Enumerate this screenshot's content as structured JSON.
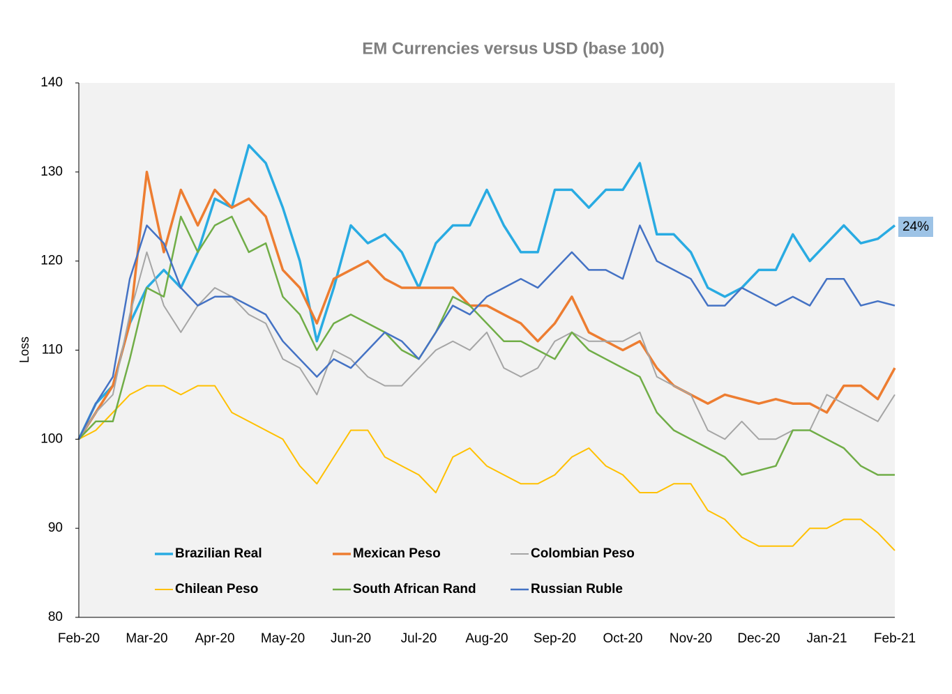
{
  "chart_data": {
    "type": "line",
    "title": "EM Currencies versus USD (base 100)",
    "y_label": "Loss",
    "categories": [
      "Feb-20",
      null,
      null,
      null,
      "Mar-20",
      null,
      null,
      null,
      "Apr-20",
      null,
      null,
      null,
      "May-20",
      null,
      null,
      null,
      "Jun-20",
      null,
      null,
      null,
      "Jul-20",
      null,
      null,
      null,
      "Aug-20",
      null,
      null,
      null,
      "Sep-20",
      null,
      null,
      null,
      "Oct-20",
      null,
      null,
      null,
      "Nov-20",
      null,
      null,
      null,
      "Dec-20",
      null,
      null,
      null,
      "Jan-21",
      null,
      null,
      null,
      "Feb-21"
    ],
    "ylim": [
      80,
      140
    ],
    "yticks": [
      80,
      90,
      100,
      110,
      120,
      130,
      140
    ],
    "grid": false,
    "annotation": "24%",
    "series": [
      {
        "name": "Brazilian Real",
        "color": "#29abe2",
        "line_width": 3.5,
        "values": [
          100,
          104,
          106,
          113,
          117,
          119,
          117,
          121,
          127,
          126,
          133,
          131,
          126,
          120,
          111,
          117,
          124,
          122,
          123,
          121,
          117,
          122,
          124,
          124,
          128,
          124,
          121,
          121,
          128,
          128,
          126,
          128,
          128,
          131,
          123,
          123,
          121,
          117,
          116,
          117,
          119,
          119,
          123,
          120,
          122,
          124,
          122,
          122.5,
          124
        ]
      },
      {
        "name": "Mexican Peso",
        "color": "#ed7d31",
        "line_width": 3.5,
        "values": [
          100,
          103,
          106,
          113,
          130,
          121,
          128,
          124,
          128,
          126,
          127,
          125,
          119,
          117,
          113,
          118,
          119,
          120,
          118,
          117,
          117,
          117,
          117,
          115,
          115,
          114,
          113,
          111,
          113,
          116,
          112,
          111,
          110,
          111,
          108,
          106,
          105,
          104,
          105,
          104.5,
          104,
          104.5,
          104,
          104,
          103,
          106,
          106,
          104.5,
          108
        ]
      },
      {
        "name": "Colombian Peso",
        "color": "#a5a5a5",
        "line_width": 2,
        "values": [
          100,
          103,
          105,
          114,
          121,
          115,
          112,
          115,
          117,
          116,
          114,
          113,
          109,
          108,
          105,
          110,
          109,
          107,
          106,
          106,
          108,
          110,
          111,
          110,
          112,
          108,
          107,
          108,
          111,
          112,
          111,
          111,
          111,
          112,
          107,
          106,
          105,
          101,
          100,
          102,
          100,
          100,
          101,
          101,
          105,
          104,
          103,
          102,
          105
        ]
      },
      {
        "name": "Chilean Peso",
        "color": "#ffc000",
        "line_width": 2,
        "values": [
          100,
          101,
          103,
          105,
          106,
          106,
          105,
          106,
          106,
          103,
          102,
          101,
          100,
          97,
          95,
          98,
          101,
          101,
          98,
          97,
          96,
          94,
          98,
          99,
          97,
          96,
          95,
          95,
          96,
          98,
          99,
          97,
          96,
          94,
          94,
          95,
          95,
          92,
          91,
          89,
          88,
          88,
          88,
          90,
          90,
          91,
          91,
          89.5,
          87.5
        ]
      },
      {
        "name": "South African Rand",
        "color": "#70ad47",
        "line_width": 2.5,
        "values": [
          100,
          102,
          102,
          109,
          117,
          116,
          125,
          121,
          124,
          125,
          121,
          122,
          116,
          114,
          110,
          113,
          114,
          113,
          112,
          110,
          109,
          112,
          116,
          115,
          113,
          111,
          111,
          110,
          109,
          112,
          110,
          109,
          108,
          107,
          103,
          101,
          100,
          99,
          98,
          96,
          96.5,
          97,
          101,
          101,
          100,
          99,
          97,
          96,
          96
        ]
      },
      {
        "name": "Russian Ruble",
        "color": "#4472c4",
        "line_width": 2.5,
        "values": [
          100,
          104,
          107,
          118,
          124,
          122,
          117,
          115,
          116,
          116,
          115,
          114,
          111,
          109,
          107,
          109,
          108,
          110,
          112,
          111,
          109,
          112,
          115,
          114,
          116,
          117,
          118,
          117,
          119,
          121,
          119,
          119,
          118,
          124,
          120,
          119,
          118,
          115,
          115,
          117,
          116,
          115,
          116,
          115,
          118,
          118,
          115,
          115.5,
          115
        ]
      }
    ]
  }
}
